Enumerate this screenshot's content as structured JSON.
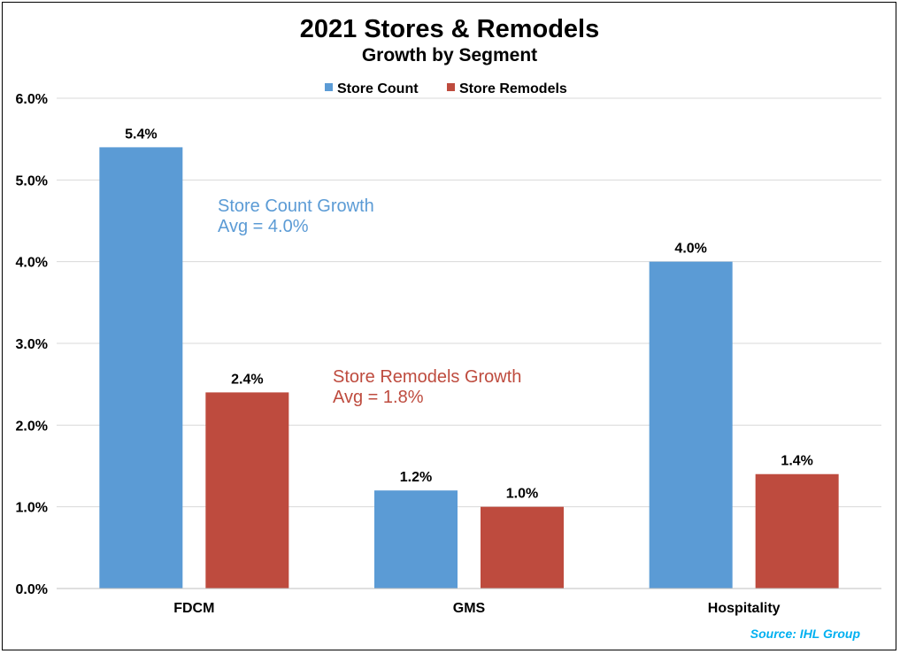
{
  "chart_data": {
    "type": "bar",
    "title": "2021 Stores & Remodels",
    "subtitle": "Growth by Segment",
    "categories": [
      "FDCM",
      "GMS",
      "Hospitality"
    ],
    "series": [
      {
        "name": "Store Count",
        "color": "#5B9BD5",
        "values": [
          5.4,
          1.2,
          4.0
        ],
        "labels": [
          "5.4%",
          "1.2%",
          "4.0%"
        ]
      },
      {
        "name": "Store Remodels",
        "color": "#BE4B3E",
        "values": [
          2.4,
          1.0,
          1.4
        ],
        "labels": [
          "2.4%",
          "1.0%",
          "1.4%"
        ]
      }
    ],
    "ylim": [
      0,
      6
    ],
    "yticks": [
      {
        "value": 0,
        "label": "0.0%"
      },
      {
        "value": 1,
        "label": "1.0%"
      },
      {
        "value": 2,
        "label": "2.0%"
      },
      {
        "value": 3,
        "label": "3.0%"
      },
      {
        "value": 4,
        "label": "4.0%"
      },
      {
        "value": 5,
        "label": "5.0%"
      },
      {
        "value": 6,
        "label": "6.0%"
      }
    ],
    "grid": true,
    "legend_position": "top",
    "annotations": [
      {
        "line1": "Store Count Growth",
        "line2": "Avg = 4.0%",
        "color": "#5B9BD5"
      },
      {
        "line1": "Store Remodels Growth",
        "line2": "Avg = 1.8%",
        "color": "#BE4B3E"
      }
    ],
    "source": "Source: IHL Group",
    "source_color": "#00B0F0",
    "gridline_color": "#D9D9D9",
    "axis_color": "#BFBFBF"
  }
}
